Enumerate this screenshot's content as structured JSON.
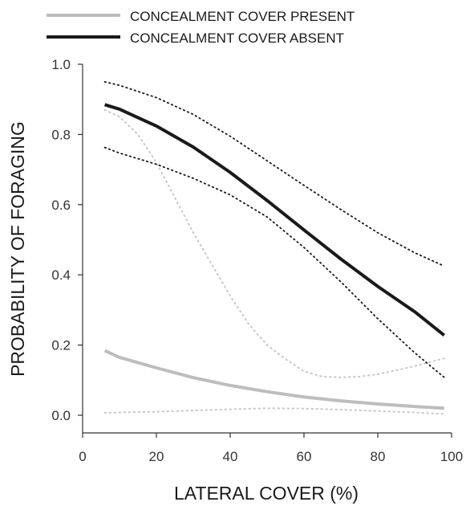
{
  "chart_data": {
    "type": "line",
    "title": "",
    "xlabel": "LATERAL COVER (%)",
    "ylabel": "PROBABILITY OF FORAGING",
    "xlim": [
      0,
      100
    ],
    "ylim": [
      0.0,
      1.0
    ],
    "xticks": [
      "0",
      "20",
      "40",
      "60",
      "80",
      "100"
    ],
    "yticks": [
      "0.0",
      "0.2",
      "0.4",
      "0.6",
      "0.8",
      "1.0"
    ],
    "grid": false,
    "legend_position": "top-left, above plot",
    "series": [
      {
        "name": "CONCEALMENT COVER PRESENT",
        "color": "#bdbdbd",
        "style": "solid",
        "x": [
          6,
          10,
          20,
          30,
          40,
          50,
          60,
          70,
          80,
          90,
          98
        ],
        "y": [
          0.184,
          0.165,
          0.135,
          0.107,
          0.085,
          0.067,
          0.052,
          0.041,
          0.032,
          0.025,
          0.02
        ]
      },
      {
        "name": "CONCEALMENT COVER ABSENT",
        "color": "#1a1a1a",
        "style": "solid",
        "x": [
          6,
          10,
          20,
          30,
          40,
          50,
          60,
          70,
          80,
          90,
          98
        ],
        "y": [
          0.885,
          0.872,
          0.824,
          0.764,
          0.692,
          0.612,
          0.528,
          0.445,
          0.367,
          0.295,
          0.228
        ]
      }
    ],
    "confidence_bands": [
      {
        "series": "CONCEALMENT COVER PRESENT",
        "color": "#c8c8c8",
        "style": "dotted",
        "upper": {
          "x": [
            6,
            10,
            15,
            20,
            25,
            30,
            35,
            40,
            45,
            50,
            55,
            60,
            65,
            70,
            75,
            80,
            85,
            90,
            98
          ],
          "y": [
            0.87,
            0.85,
            0.8,
            0.72,
            0.62,
            0.52,
            0.43,
            0.34,
            0.26,
            0.2,
            0.16,
            0.125,
            0.11,
            0.108,
            0.11,
            0.117,
            0.128,
            0.14,
            0.162
          ]
        },
        "lower": {
          "x": [
            6,
            20,
            40,
            50,
            60,
            70,
            80,
            90,
            98
          ],
          "y": [
            0.007,
            0.01,
            0.017,
            0.02,
            0.019,
            0.016,
            0.012,
            0.008,
            0.004
          ]
        }
      },
      {
        "series": "CONCEALMENT COVER ABSENT",
        "color": "#1a1a1a",
        "style": "dotted",
        "upper": {
          "x": [
            6,
            10,
            20,
            30,
            40,
            50,
            60,
            70,
            80,
            90,
            98
          ],
          "y": [
            0.95,
            0.94,
            0.905,
            0.857,
            0.795,
            0.725,
            0.655,
            0.586,
            0.52,
            0.463,
            0.425
          ]
        },
        "lower": {
          "x": [
            6,
            10,
            20,
            30,
            40,
            50,
            60,
            70,
            80,
            90,
            98
          ],
          "y": [
            0.763,
            0.747,
            0.715,
            0.675,
            0.628,
            0.565,
            0.478,
            0.38,
            0.275,
            0.178,
            0.108
          ]
        }
      }
    ]
  }
}
